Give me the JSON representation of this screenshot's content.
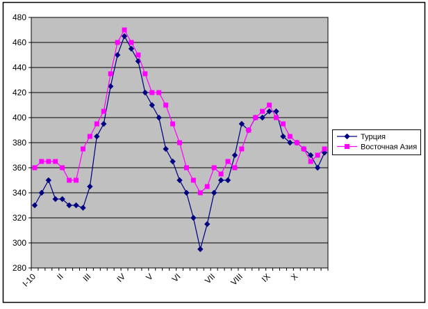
{
  "chart_data": {
    "type": "line",
    "title": "",
    "xlabel": "",
    "ylabel": "",
    "x_axis": {
      "month_labels": [
        "I-10",
        "II",
        "III",
        "IV",
        "V",
        "VI",
        "VII",
        "VIII",
        "IX",
        "X"
      ],
      "month_start_indices": [
        0,
        4,
        8,
        13,
        17,
        21,
        26,
        30,
        34,
        38
      ],
      "n_points": 43
    },
    "y_axis": {
      "min": 280,
      "max": 480,
      "step": 20,
      "tick_labels": [
        "280",
        "300",
        "320",
        "340",
        "360",
        "380",
        "400",
        "420",
        "440",
        "460",
        "480"
      ]
    },
    "grid": "horizontal",
    "plot_bg_color": "#C0C0C0",
    "gridline_color": "#000000",
    "legend_position": "right",
    "series": [
      {
        "name": "Турция",
        "color": "#000080",
        "marker": "diamond",
        "values": [
          330,
          340,
          350,
          335,
          335,
          330,
          330,
          328,
          345,
          385,
          395,
          425,
          450,
          465,
          455,
          445,
          420,
          410,
          400,
          375,
          365,
          350,
          340,
          320,
          295,
          315,
          340,
          350,
          350,
          370,
          395,
          390,
          400,
          400,
          405,
          405,
          385,
          380,
          380,
          375,
          370,
          360,
          372
        ]
      },
      {
        "name": "Восточная Азия",
        "color": "#FF00FF",
        "marker": "square",
        "values": [
          360,
          365,
          365,
          365,
          360,
          350,
          350,
          375,
          385,
          395,
          405,
          435,
          460,
          470,
          460,
          450,
          435,
          420,
          420,
          410,
          395,
          380,
          360,
          350,
          340,
          345,
          360,
          355,
          365,
          360,
          375,
          390,
          400,
          405,
          410,
          400,
          395,
          385,
          380,
          375,
          365,
          370,
          375
        ]
      }
    ]
  }
}
